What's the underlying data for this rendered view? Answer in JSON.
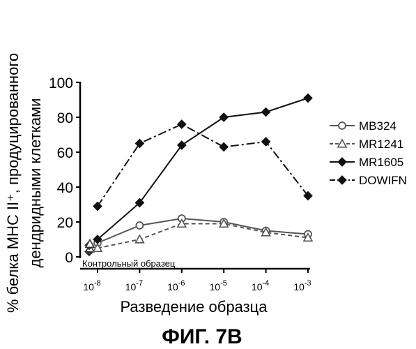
{
  "chart_data": {
    "type": "line",
    "ylabel_line1": "% белка MHC II⁺, продуцированного",
    "ylabel_line2": "дендридными клетками",
    "xlabel": "Разведение образца",
    "figure_caption": "ФИГ. 7B",
    "control_label": "Контрольный образец",
    "ylim": [
      0,
      100
    ],
    "yticks": [
      "0",
      "20",
      "40",
      "60",
      "80",
      "100"
    ],
    "x_log_exponents": [
      -8,
      -7,
      -6,
      -5,
      -4,
      -3
    ],
    "x_tick_labels": [
      "10-8",
      "10-7",
      "10-6",
      "10-5",
      "10-4",
      "10-3"
    ],
    "control_values": [
      3,
      4,
      5,
      5
    ],
    "series": [
      {
        "name": "MB324",
        "marker": "circle",
        "dash": "solid",
        "color": "#555555",
        "x": [
          -8,
          -7,
          -6,
          -5,
          -4,
          -3
        ],
        "values": [
          8,
          18,
          22,
          20,
          15,
          13
        ]
      },
      {
        "name": "MR1241",
        "marker": "triangle",
        "dash": "dashed",
        "color": "#555555",
        "x": [
          -8,
          -7,
          -6,
          -5,
          -4,
          -3
        ],
        "values": [
          5,
          10,
          19,
          19,
          14,
          11
        ]
      },
      {
        "name": "MR1605",
        "marker": "diamond",
        "dash": "solid",
        "color": "#111111",
        "x": [
          -8,
          -7,
          -6,
          -5,
          -4,
          -3
        ],
        "values": [
          10,
          31,
          64,
          80,
          83,
          91
        ]
      },
      {
        "name": "DOWIFN",
        "marker": "diamond",
        "dash": "dashdot",
        "color": "#111111",
        "x": [
          -8,
          -7,
          -6,
          -5,
          -4,
          -3
        ],
        "values": [
          29,
          65,
          76,
          63,
          66,
          35
        ]
      }
    ],
    "legend_position": "right",
    "grid": false
  }
}
